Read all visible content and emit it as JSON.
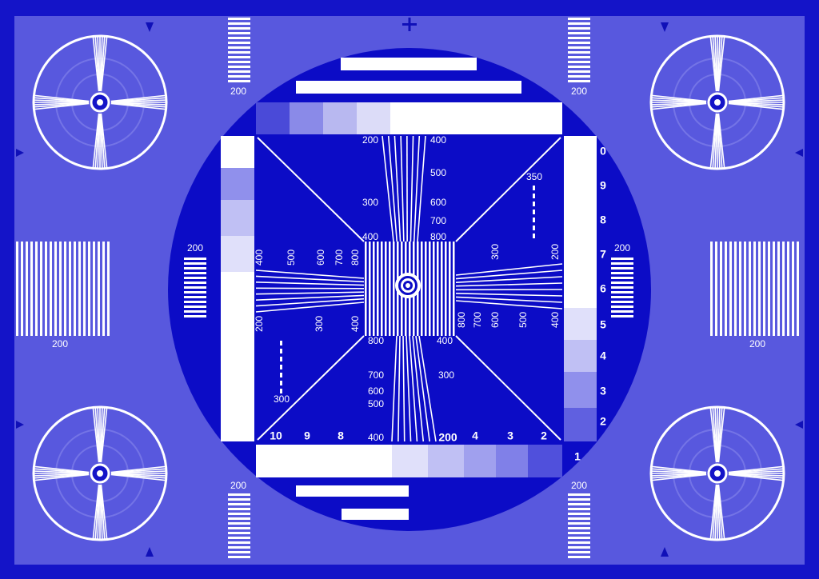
{
  "corner_bar_labels": [
    "200",
    "200",
    "200",
    "200"
  ],
  "side_bar_labels": [
    "200",
    "200"
  ],
  "inner_bar_labels": [
    "200",
    "200"
  ],
  "top_wedge_labels": [
    "200",
    "300",
    "400",
    "400",
    "500",
    "600",
    "700",
    "800"
  ],
  "bottom_wedge_labels": [
    "800",
    "700",
    "600",
    "500",
    "400",
    "400",
    "300"
  ],
  "left_wedge_labels": [
    "400",
    "500",
    "600",
    "700",
    "800",
    "200",
    "300",
    "400"
  ],
  "right_wedge_labels": [
    "300",
    "200",
    "800",
    "700",
    "600",
    "500",
    "400"
  ],
  "diagonal_labels": [
    "350",
    "300"
  ],
  "right_scale": [
    "0",
    "9",
    "8",
    "7",
    "6",
    "5",
    "4",
    "3",
    "2",
    "1"
  ],
  "bottom_scale": [
    "10",
    "9",
    "8",
    "200",
    "4",
    "3",
    "2"
  ]
}
